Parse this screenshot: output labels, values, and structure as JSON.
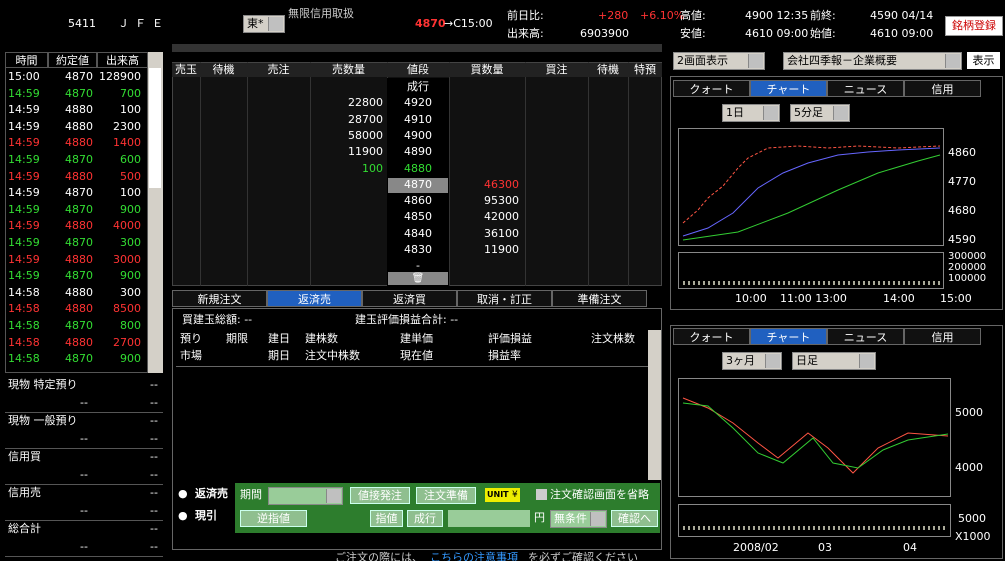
{
  "header": {
    "code": "5411",
    "name": "ＪＦＥ",
    "market": "東*",
    "credit": "無限信用取扱",
    "last_price": "4870",
    "last_time": "→C15:00",
    "change_label": "前日比:",
    "change": "+280",
    "change_pct": "+6.10%",
    "high_label": "高値:",
    "high": "4900 12:35",
    "prev_label": "前終:",
    "prev": "4590 04/14",
    "volume_label": "出来高:",
    "volume": "6903900",
    "low_label": "安値:",
    "low": "4610 09:00",
    "open_label": "始値:",
    "open": "4610 09:00",
    "register": "銘柄登録"
  },
  "ticks": {
    "headers": [
      "時間",
      "約定値",
      "出来高"
    ],
    "rows": [
      {
        "time": "15:00",
        "price": 4870,
        "volume": 128900,
        "color": "#ffffff"
      },
      {
        "time": "14:59",
        "price": 4870,
        "volume": 700,
        "color": "#33dd33"
      },
      {
        "time": "14:59",
        "price": 4880,
        "volume": 100,
        "color": "#ffffff"
      },
      {
        "time": "14:59",
        "price": 4880,
        "volume": 2300,
        "color": "#ffffff"
      },
      {
        "time": "14:59",
        "price": 4880,
        "volume": 1400,
        "color": "#ff3333"
      },
      {
        "time": "14:59",
        "price": 4870,
        "volume": 600,
        "color": "#33dd33"
      },
      {
        "time": "14:59",
        "price": 4880,
        "volume": 500,
        "color": "#ff3333"
      },
      {
        "time": "14:59",
        "price": 4870,
        "volume": 100,
        "color": "#ffffff"
      },
      {
        "time": "14:59",
        "price": 4870,
        "volume": 900,
        "color": "#33dd33"
      },
      {
        "time": "14:59",
        "price": 4880,
        "volume": 4000,
        "color": "#ff3333"
      },
      {
        "time": "14:59",
        "price": 4870,
        "volume": 300,
        "color": "#33dd33"
      },
      {
        "time": "14:59",
        "price": 4880,
        "volume": 3000,
        "color": "#ff3333"
      },
      {
        "time": "14:59",
        "price": 4870,
        "volume": 900,
        "color": "#33dd33"
      },
      {
        "time": "14:58",
        "price": 4880,
        "volume": 300,
        "color": "#ffffff"
      },
      {
        "time": "14:58",
        "price": 4880,
        "volume": 8500,
        "color": "#ff3333"
      },
      {
        "time": "14:58",
        "price": 4870,
        "volume": 800,
        "color": "#33dd33"
      },
      {
        "time": "14:58",
        "price": 4880,
        "volume": 2700,
        "color": "#ff3333"
      },
      {
        "time": "14:58",
        "price": 4870,
        "volume": 900,
        "color": "#33dd33"
      }
    ]
  },
  "account": [
    {
      "label": "現物 特定預り",
      "a": "--",
      "b": "--"
    },
    {
      "label": "現物 一般預り",
      "a": "--",
      "b": "--"
    },
    {
      "label": "信用買",
      "a": "--",
      "b": "--"
    },
    {
      "label": "信用売",
      "a": "--",
      "b": "--"
    },
    {
      "label": "総合計",
      "a": "--",
      "b": "--"
    }
  ],
  "order_book": {
    "headers": [
      "売玉",
      "待機",
      "売注",
      "売数量",
      "値段",
      "買数量",
      "買注",
      "待機",
      "特預"
    ],
    "rows": [
      {
        "price": "成行"
      },
      {
        "sell_qty": 22800,
        "price": 4920
      },
      {
        "sell_qty": 28700,
        "price": 4910
      },
      {
        "sell_qty": 58000,
        "price": 4900
      },
      {
        "sell_qty": 11900,
        "price": 4890
      },
      {
        "sell_qty": 100,
        "price": 4880,
        "sell_color": "#33dd33"
      },
      {
        "price": 4870,
        "buy_qty": 46300,
        "current": true,
        "buy_color": "#ff3333"
      },
      {
        "price": 4860,
        "buy_qty": 95300
      },
      {
        "price": 4850,
        "buy_qty": 42000
      },
      {
        "price": 4840,
        "buy_qty": 36100
      },
      {
        "price": 4830,
        "buy_qty": 11900
      },
      {
        "price": "-"
      }
    ]
  },
  "order_tabs": [
    "新規注文",
    "返済売",
    "返済買",
    "取消・訂正",
    "準備注文"
  ],
  "positions": {
    "total": "買建玉総額: --",
    "pnl_total": "建玉評価損益合計: --",
    "headers": [
      [
        "預り",
        "市場"
      ],
      [
        "期限"
      ],
      [
        "建日",
        "期日"
      ],
      [
        "建株数",
        "注文中株数"
      ],
      [
        "建単価",
        "現在値"
      ],
      [
        "評価損益",
        "損益率"
      ],
      [
        "注文株数"
      ]
    ]
  },
  "form": {
    "repay_sell": "返済売",
    "genbiki": "現引",
    "period": "期間",
    "direct": "値接発注",
    "prepare": "注文準備",
    "unit": "UNIT",
    "yen_icon": "¥",
    "skip_confirm": "注文確認画面を省略",
    "stop": "逆指値",
    "limit": "指値",
    "market": "成行",
    "yen": "円",
    "condition": "無条件",
    "confirm": "確認へ"
  },
  "footer": {
    "a": "ご注文の際には、",
    "link": "こちらの注意事項",
    "b": "を必ずご確認ください"
  },
  "right": {
    "layout": "2画面表示",
    "info": "会社四季報－企業概要",
    "show": "表示",
    "tabs": [
      "クォート",
      "チャート",
      "ニュース",
      "信用"
    ],
    "chart1": {
      "range": "1日",
      "interval": "5分足",
      "price_labels": [
        "4860",
        "4770",
        "4680",
        "4590"
      ],
      "volume_labels": [
        "300000",
        "200000",
        "100000"
      ],
      "x_labels": [
        "10:00",
        "11:00 13:00",
        "14:00",
        "15:00"
      ]
    },
    "chart2": {
      "range": "3ヶ月",
      "interval": "日足",
      "price_labels": [
        "5000",
        "4000"
      ],
      "volume_labels": [
        "5000"
      ],
      "volume_unit": "X1000",
      "x_labels": [
        "2008/02",
        "03",
        "04"
      ]
    }
  }
}
